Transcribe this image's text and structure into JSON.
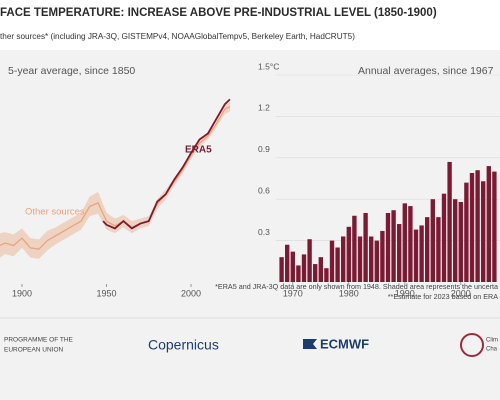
{
  "header": {
    "title": "FACE TEMPERATURE: INCREASE ABOVE PRE-INDUSTRIAL LEVEL (1850-1900)",
    "subtitle": "ther sources* (including JRA-3Q, GISTEMPv4, NOAAGlobalTempv5, Berkeley Earth, HadCRUT5)"
  },
  "chart_data": [
    {
      "type": "line",
      "title": "5-year average, since 1850",
      "xlim": [
        1887,
        2026
      ],
      "xticks": [
        1900,
        1950,
        2000
      ],
      "ylim": [
        -0.2,
        1.5
      ],
      "series": [
        {
          "name": "Other sources",
          "color": "#e8a47c",
          "x": [
            1887,
            1890,
            1895,
            1900,
            1905,
            1910,
            1915,
            1920,
            1925,
            1930,
            1935,
            1940,
            1945,
            1950,
            1955,
            1960,
            1965,
            1970,
            1975,
            1980,
            1985,
            1990,
            1995,
            2000,
            2005,
            2010,
            2015,
            2020,
            2023
          ],
          "values": [
            0.1,
            0.12,
            0.1,
            0.16,
            0.08,
            0.07,
            0.14,
            0.18,
            0.22,
            0.26,
            0.3,
            0.42,
            0.45,
            0.3,
            0.26,
            0.3,
            0.25,
            0.28,
            0.3,
            0.44,
            0.52,
            0.62,
            0.72,
            0.84,
            0.94,
            1.0,
            1.1,
            1.22,
            1.24
          ],
          "band_lower": [
            0.0,
            0.03,
            0.01,
            0.08,
            0.0,
            -0.01,
            0.06,
            0.11,
            0.15,
            0.19,
            0.23,
            0.34,
            0.36,
            0.23,
            0.2,
            0.25,
            0.2,
            0.24,
            0.26,
            0.4,
            0.48,
            0.59,
            0.69,
            0.81,
            0.91,
            0.97,
            1.07,
            1.18,
            1.2
          ],
          "band_upper": [
            0.2,
            0.21,
            0.19,
            0.24,
            0.16,
            0.15,
            0.22,
            0.25,
            0.29,
            0.33,
            0.37,
            0.5,
            0.54,
            0.37,
            0.32,
            0.35,
            0.3,
            0.32,
            0.34,
            0.48,
            0.56,
            0.65,
            0.75,
            0.87,
            0.97,
            1.03,
            1.13,
            1.26,
            1.28
          ]
        },
        {
          "name": "ERA5",
          "color": "#7b1a33",
          "x": [
            1948,
            1950,
            1955,
            1960,
            1965,
            1970,
            1975,
            1980,
            1985,
            1990,
            1995,
            2000,
            2005,
            2010,
            2015,
            2020,
            2023
          ],
          "values": [
            0.3,
            0.27,
            0.24,
            0.3,
            0.24,
            0.28,
            0.3,
            0.46,
            0.52,
            0.64,
            0.74,
            0.86,
            0.97,
            1.02,
            1.14,
            1.26,
            1.3
          ]
        }
      ]
    },
    {
      "type": "bar",
      "title": "Annual averages, since 1967",
      "color": "#7b1a33",
      "xlim": [
        1967,
        2007
      ],
      "xticks": [
        1970,
        1980,
        1990,
        2000
      ],
      "ylim": [
        0,
        1.5
      ],
      "yticks": [
        0.3,
        0.6,
        0.9,
        1.2,
        {
          "value": 1.5,
          "label": "1.5°C"
        }
      ],
      "grid": true,
      "x": [
        1968,
        1969,
        1970,
        1971,
        1972,
        1973,
        1974,
        1975,
        1976,
        1977,
        1978,
        1979,
        1980,
        1981,
        1982,
        1983,
        1984,
        1985,
        1986,
        1987,
        1988,
        1989,
        1990,
        1991,
        1992,
        1993,
        1994,
        1995,
        1996,
        1997,
        1998,
        1999,
        2000,
        2001,
        2002,
        2003,
        2004,
        2005,
        2006
      ],
      "values": [
        0.18,
        0.27,
        0.22,
        0.12,
        0.2,
        0.31,
        0.13,
        0.18,
        0.1,
        0.3,
        0.25,
        0.33,
        0.4,
        0.48,
        0.33,
        0.5,
        0.33,
        0.3,
        0.37,
        0.5,
        0.52,
        0.42,
        0.57,
        0.55,
        0.38,
        0.41,
        0.47,
        0.6,
        0.47,
        0.64,
        0.87,
        0.6,
        0.58,
        0.72,
        0.79,
        0.81,
        0.73,
        0.84,
        0.8
      ]
    }
  ],
  "footnotes": [
    "*ERA5 and JRA-3Q data are only shown from 1948. Shaded area represents the uncerta",
    "**Estimate for 2023 based on ERA"
  ],
  "footer": {
    "eu": [
      "PROGRAMME OF THE",
      "EUROPEAN UNION"
    ],
    "copernicus": "Copernicus",
    "ecmwf": "ECMWF",
    "c3s": [
      "Clim",
      "Cha"
    ]
  }
}
